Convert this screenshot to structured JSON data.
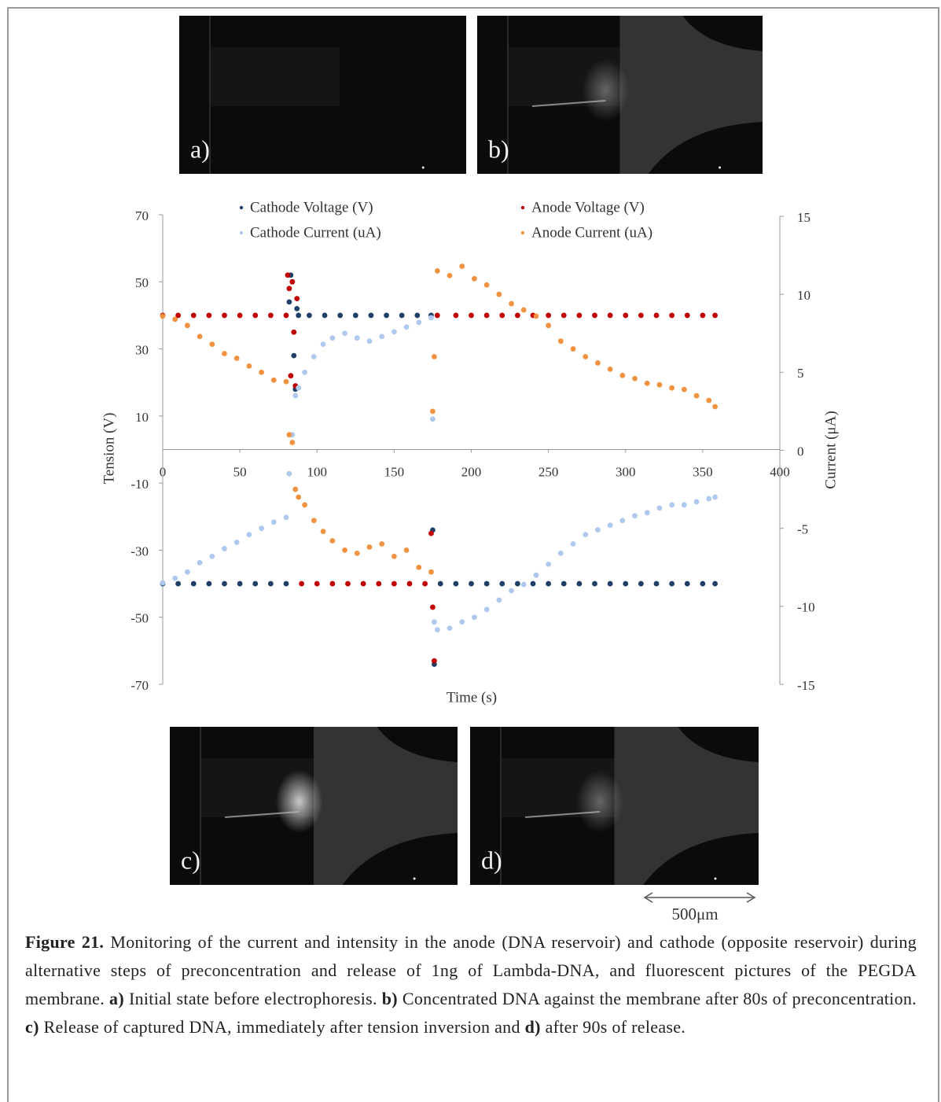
{
  "panels": [
    "a)",
    "b)",
    "c)",
    "d)"
  ],
  "scale_bar": "500μm",
  "chart_data": {
    "type": "scatter",
    "xlabel": "Time (s)",
    "ylabel": "Tension (V)",
    "y2label": "Current (μA)",
    "xlim": [
      0,
      400
    ],
    "xticks": [
      0,
      50,
      100,
      150,
      200,
      250,
      300,
      350,
      400
    ],
    "ylim": [
      -70,
      70
    ],
    "yticks": [
      -70,
      -50,
      -30,
      -10,
      10,
      30,
      50,
      70
    ],
    "y2lim": [
      -15,
      15
    ],
    "y2ticks": [
      -15,
      -10,
      -5,
      0,
      5,
      10,
      15
    ],
    "series": [
      {
        "name": "Cathode Voltage (V)",
        "color": "#1f3f66",
        "x": [
          0,
          10,
          20,
          30,
          40,
          50,
          60,
          70,
          80,
          82,
          83,
          84,
          85,
          86,
          87,
          88,
          95,
          105,
          115,
          125,
          135,
          145,
          155,
          165,
          174,
          175,
          176,
          180,
          190,
          200,
          210,
          220,
          230,
          240,
          250,
          260,
          270,
          280,
          290,
          300,
          310,
          320,
          330,
          340,
          350,
          358
        ],
        "values": [
          -40,
          -40,
          -40,
          -40,
          -40,
          -40,
          -40,
          -40,
          -40,
          44,
          52,
          50,
          28,
          18,
          42,
          40,
          40,
          40,
          40,
          40,
          40,
          40,
          40,
          40,
          40,
          -24,
          -64,
          -40,
          -40,
          -40,
          -40,
          -40,
          -40,
          -40,
          -40,
          -40,
          -40,
          -40,
          -40,
          -40,
          -40,
          -40,
          -40,
          -40,
          -40,
          -40
        ]
      },
      {
        "name": "Anode Voltage (V)",
        "color": "#c00000",
        "x": [
          0,
          10,
          20,
          30,
          40,
          50,
          60,
          70,
          80,
          81,
          82,
          83,
          84,
          85,
          86,
          87,
          90,
          100,
          110,
          120,
          130,
          140,
          150,
          160,
          170,
          174,
          175,
          176,
          178,
          190,
          200,
          210,
          220,
          230,
          240,
          250,
          260,
          270,
          280,
          290,
          300,
          310,
          320,
          330,
          340,
          350,
          358
        ],
        "values": [
          40,
          40,
          40,
          40,
          40,
          40,
          40,
          40,
          40,
          52,
          48,
          22,
          50,
          35,
          19,
          45,
          -40,
          -40,
          -40,
          -40,
          -40,
          -40,
          -40,
          -40,
          -40,
          -25,
          -47,
          -63,
          40,
          40,
          40,
          40,
          40,
          40,
          40,
          40,
          40,
          40,
          40,
          40,
          40,
          40,
          40,
          40,
          40,
          40,
          40
        ]
      },
      {
        "name": "Cathode Current (uA)",
        "color": "#aec8ee",
        "axis": "y2",
        "x": [
          0,
          8,
          16,
          24,
          32,
          40,
          48,
          56,
          64,
          72,
          80,
          82,
          84,
          86,
          88,
          92,
          98,
          104,
          110,
          118,
          126,
          134,
          142,
          150,
          158,
          166,
          174,
          175,
          176,
          178,
          186,
          194,
          202,
          210,
          218,
          226,
          234,
          242,
          250,
          258,
          266,
          274,
          282,
          290,
          298,
          306,
          314,
          322,
          330,
          338,
          346,
          354,
          358
        ],
        "values": [
          -8.5,
          -8.2,
          -7.8,
          -7.2,
          -6.8,
          -6.3,
          -5.9,
          -5.4,
          -5.0,
          -4.6,
          -4.3,
          -1.5,
          1.0,
          3.5,
          4.0,
          5.0,
          6.0,
          6.8,
          7.2,
          7.5,
          7.2,
          7.0,
          7.3,
          7.6,
          7.9,
          8.2,
          8.5,
          2.0,
          -11.0,
          -11.5,
          -11.4,
          -11.0,
          -10.7,
          -10.2,
          -9.6,
          -9.0,
          -8.6,
          -8.0,
          -7.3,
          -6.6,
          -6.0,
          -5.4,
          -5.1,
          -4.8,
          -4.5,
          -4.2,
          -4.0,
          -3.7,
          -3.5,
          -3.5,
          -3.3,
          -3.1,
          -3.0
        ]
      },
      {
        "name": "Anode Current (uA)",
        "color": "#f0923f",
        "axis": "y2",
        "x": [
          0,
          8,
          16,
          24,
          32,
          40,
          48,
          56,
          64,
          72,
          80,
          82,
          84,
          86,
          88,
          92,
          98,
          104,
          110,
          118,
          126,
          134,
          142,
          150,
          158,
          166,
          174,
          175,
          176,
          178,
          186,
          194,
          202,
          210,
          218,
          226,
          234,
          242,
          250,
          258,
          266,
          274,
          282,
          290,
          298,
          306,
          314,
          322,
          330,
          338,
          346,
          354,
          358
        ],
        "values": [
          8.6,
          8.4,
          8.0,
          7.3,
          6.8,
          6.2,
          5.9,
          5.4,
          5.0,
          4.5,
          4.4,
          1.0,
          0.5,
          -2.5,
          -3.0,
          -3.5,
          -4.5,
          -5.2,
          -5.8,
          -6.4,
          -6.6,
          -6.2,
          -6.0,
          -6.8,
          -6.4,
          -7.5,
          -7.8,
          2.5,
          6.0,
          11.5,
          11.2,
          11.8,
          11.0,
          10.6,
          10.0,
          9.4,
          9.0,
          8.6,
          8.0,
          7.0,
          6.5,
          6.0,
          5.6,
          5.2,
          4.8,
          4.6,
          4.3,
          4.2,
          4.0,
          3.9,
          3.5,
          3.2,
          2.8
        ]
      }
    ]
  },
  "caption": [
    {
      "bold": "Figure 21."
    },
    {
      "text": " Monitoring of the current and intensity in the anode (DNA reservoir) and cathode (opposite reservoir) during alternative steps of preconcentration and release of 1ng of Lambda-DNA, and fluorescent pictures of the PEGDA membrane. "
    },
    {
      "bold": "a)"
    },
    {
      "text": " Initial state before electrophoresis. "
    },
    {
      "bold": "b)"
    },
    {
      "text": " Concentrated DNA against the membrane after 80s of preconcentration. "
    },
    {
      "bold": "c)"
    },
    {
      "text": " Release of captured DNA, immediately after tension inversion and "
    },
    {
      "bold": "d)"
    },
    {
      "text": " after 90s of release."
    }
  ]
}
